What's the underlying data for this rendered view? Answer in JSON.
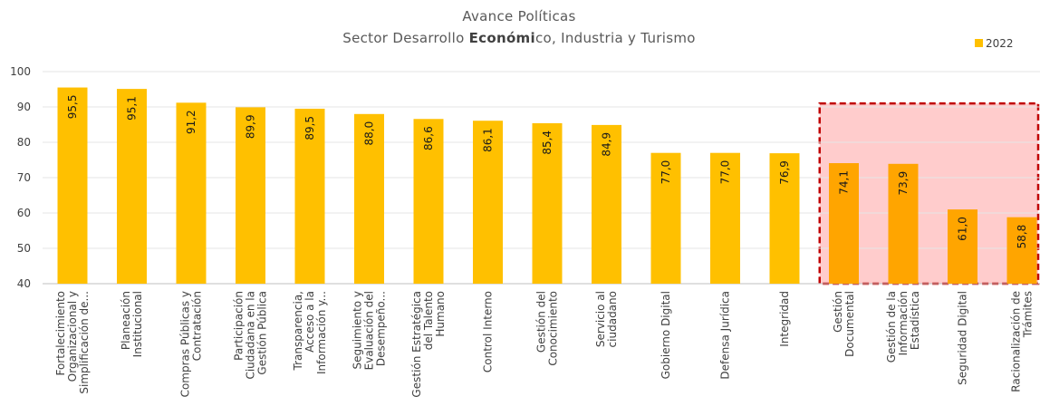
{
  "chart_data": {
    "type": "bar",
    "title": "Avance Políticas",
    "subtitle": {
      "before": "Sector Desarrollo ",
      "bold": "Económi",
      "after": "co, Industria y Turismo"
    },
    "series_name": "2022",
    "ylim": [
      40,
      100
    ],
    "yticks": [
      40,
      50,
      60,
      70,
      80,
      90,
      100
    ],
    "grid": true,
    "legend_position": "top-right",
    "colors": {
      "bar": "#FFC000",
      "bar_highlight": "#FFA500",
      "highlight_fill": "#FFCCCC",
      "highlight_border": "#C00000"
    },
    "highlight_range": [
      13,
      16
    ],
    "categories": [
      [
        "Fortalecimiento",
        "Organizacional y",
        "Simplificación de..."
      ],
      [
        "Planeación",
        "Institucional"
      ],
      [
        "Compras Públicas y",
        "Contratación"
      ],
      [
        "Participación",
        "Ciudadana en la",
        "Gestión Pública"
      ],
      [
        "Transparencia,",
        "Acceso a la",
        "Información y..."
      ],
      [
        "Seguimiento y",
        "Evaluación del",
        "Desempeño..."
      ],
      [
        "Gestión Estratégica",
        "del Talento",
        "Humano"
      ],
      [
        "Control Interno"
      ],
      [
        "Gestión del",
        "Conocimiento"
      ],
      [
        "Servicio al",
        "ciudadano"
      ],
      [
        "Gobierno Digital"
      ],
      [
        "Defensa Jurídica"
      ],
      [
        "Integridad"
      ],
      [
        "Gestión",
        "Documental"
      ],
      [
        "Gestión de la",
        "Información",
        "Estadística"
      ],
      [
        "Seguridad Digital"
      ],
      [
        "Racionalización de",
        "Trámites"
      ]
    ],
    "values": [
      95.5,
      95.1,
      91.2,
      89.9,
      89.5,
      88.0,
      86.6,
      86.1,
      85.4,
      84.9,
      77.0,
      77.0,
      76.9,
      74.1,
      73.9,
      61.0,
      58.8
    ],
    "value_labels": [
      "95,5",
      "95,1",
      "91,2",
      "89,9",
      "89,5",
      "88,0",
      "86,6",
      "86,1",
      "85,4",
      "84,9",
      "77,0",
      "77,0",
      "76,9",
      "74,1",
      "73,9",
      "61,0",
      "58,8"
    ]
  }
}
